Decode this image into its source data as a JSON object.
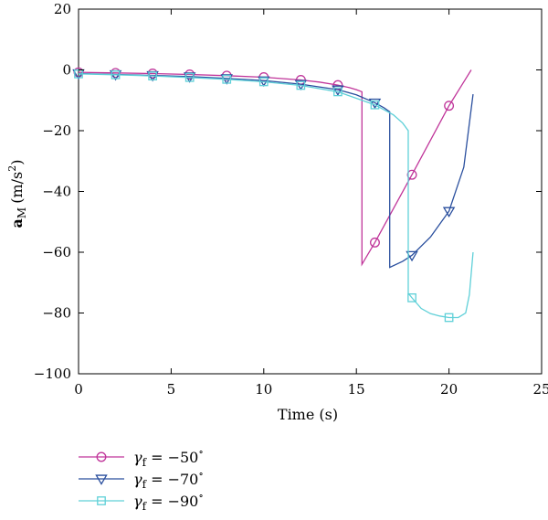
{
  "chart_data": {
    "type": "line",
    "xlabel": "Time (s)",
    "ylabel_main": "a",
    "ylabel_sub": "M",
    "ylabel_unit": "(m/s",
    "ylabel_sup": "2",
    "ylabel_close": ")",
    "xlim": [
      0,
      25
    ],
    "ylim": [
      -100,
      20
    ],
    "xticks": [
      0,
      5,
      10,
      15,
      20,
      25
    ],
    "yticks": [
      20,
      0,
      -20,
      -40,
      -60,
      -80,
      -100
    ],
    "grid": false,
    "legend_position": "below",
    "series": [
      {
        "name_prefix": "γ",
        "name_sub": "f",
        "name_value": " = −50",
        "name_deg": "∘",
        "color": "#c0359a",
        "marker": "circle",
        "x": [
          0,
          2,
          4,
          6,
          8,
          10,
          12,
          13,
          14,
          14.6,
          15.0,
          15.3,
          15.3,
          16,
          18,
          20,
          21.2
        ],
        "y": [
          -0.8,
          -1.0,
          -1.2,
          -1.5,
          -1.9,
          -2.4,
          -3.3,
          -4.0,
          -5.0,
          -5.8,
          -6.5,
          -7.2,
          -64,
          -56.8,
          -34.5,
          -11.8,
          0
        ],
        "markers_x": [
          0,
          2,
          4,
          6,
          8,
          10,
          12,
          14,
          16,
          18,
          20
        ],
        "markers_y": [
          -0.8,
          -1.0,
          -1.2,
          -1.5,
          -1.9,
          -2.4,
          -3.3,
          -5.0,
          -56.8,
          -34.5,
          -11.8
        ]
      },
      {
        "name_prefix": "γ",
        "name_sub": "f",
        "name_value": " = −70",
        "name_deg": "∘",
        "color": "#2a4f9e",
        "marker": "triangle-down",
        "x": [
          0,
          2,
          4,
          6,
          8,
          10,
          12,
          14,
          15,
          16,
          16.5,
          16.8,
          16.8,
          17.5,
          18,
          19,
          20,
          20.8,
          21.3
        ],
        "y": [
          -1.2,
          -1.5,
          -1.8,
          -2.2,
          -2.8,
          -3.5,
          -4.7,
          -6.5,
          -8.2,
          -10.8,
          -12.5,
          -13.8,
          -65,
          -63,
          -61,
          -55,
          -46.5,
          -32,
          -8
        ],
        "markers_x": [
          0,
          2,
          4,
          6,
          8,
          10,
          12,
          14,
          16,
          18,
          20
        ],
        "markers_y": [
          -1.2,
          -1.5,
          -1.8,
          -2.2,
          -2.8,
          -3.5,
          -4.7,
          -6.5,
          -10.8,
          -61,
          -46.5
        ]
      },
      {
        "name_prefix": "γ",
        "name_sub": "f",
        "name_value": " = −90",
        "name_deg": "∘",
        "color": "#5fd0d8",
        "marker": "square",
        "x": [
          0,
          2,
          4,
          6,
          8,
          10,
          12,
          14,
          16,
          17,
          17.5,
          17.8,
          17.8,
          18,
          18.5,
          19,
          19.5,
          20,
          20.5,
          20.9,
          21.1,
          21.3
        ],
        "y": [
          -1.3,
          -1.6,
          -2.0,
          -2.5,
          -3.1,
          -3.9,
          -5.1,
          -7.2,
          -11.5,
          -14.8,
          -17.5,
          -20,
          -73.5,
          -75,
          -78.5,
          -80.2,
          -81,
          -81.5,
          -81.5,
          -80,
          -74,
          -60
        ],
        "markers_x": [
          0,
          2,
          4,
          6,
          8,
          10,
          12,
          14,
          16,
          18,
          20
        ],
        "markers_y": [
          -1.3,
          -1.6,
          -2.0,
          -2.5,
          -3.1,
          -3.9,
          -5.1,
          -7.2,
          -11.5,
          -75,
          -81.5
        ]
      }
    ]
  }
}
